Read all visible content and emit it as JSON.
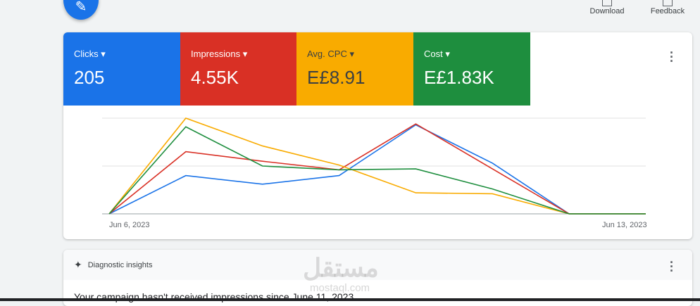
{
  "toolbar": {
    "download_label": "Download",
    "feedback_label": "Feedback"
  },
  "metrics": [
    {
      "label": "Clicks",
      "value": "205",
      "color": "#1a73e8"
    },
    {
      "label": "Impressions",
      "value": "4.55K",
      "color": "#d93025"
    },
    {
      "label": "Avg. CPC",
      "value": "E£8.91",
      "color": "#f9ab00"
    },
    {
      "label": "Cost",
      "value": "E£1.83K",
      "color": "#1e8e3e"
    }
  ],
  "chart_data": {
    "type": "line",
    "x": [
      "Jun 6, 2023",
      "Jun 7, 2023",
      "Jun 8, 2023",
      "Jun 9, 2023",
      "Jun 10, 2023",
      "Jun 11, 2023",
      "Jun 12, 2023",
      "Jun 13, 2023"
    ],
    "x_tick_labels": [
      "Jun 6, 2023",
      "Jun 13, 2023"
    ],
    "grid": true,
    "note_scale": "relative 0-100 per series, no y-axis printed",
    "series": [
      {
        "color": "#1a73e8",
        "values": [
          0,
          40,
          31,
          40,
          93,
          53,
          0,
          0
        ]
      },
      {
        "color": "#d93025",
        "values": [
          0,
          65,
          55,
          46,
          94,
          47,
          0,
          0
        ]
      },
      {
        "color": "#f9ab00",
        "values": [
          0,
          100,
          71,
          51,
          22,
          21,
          0,
          0
        ]
      },
      {
        "color": "#1e8e3e",
        "values": [
          0,
          91,
          50,
          46,
          47,
          26,
          0,
          0
        ]
      }
    ]
  },
  "insights": {
    "title": "Diagnostic insights",
    "message": "Your campaign hasn't received impressions since June 11, 2023"
  },
  "watermark": {
    "arabic": "مستقل",
    "latin": "mostaql.com"
  }
}
